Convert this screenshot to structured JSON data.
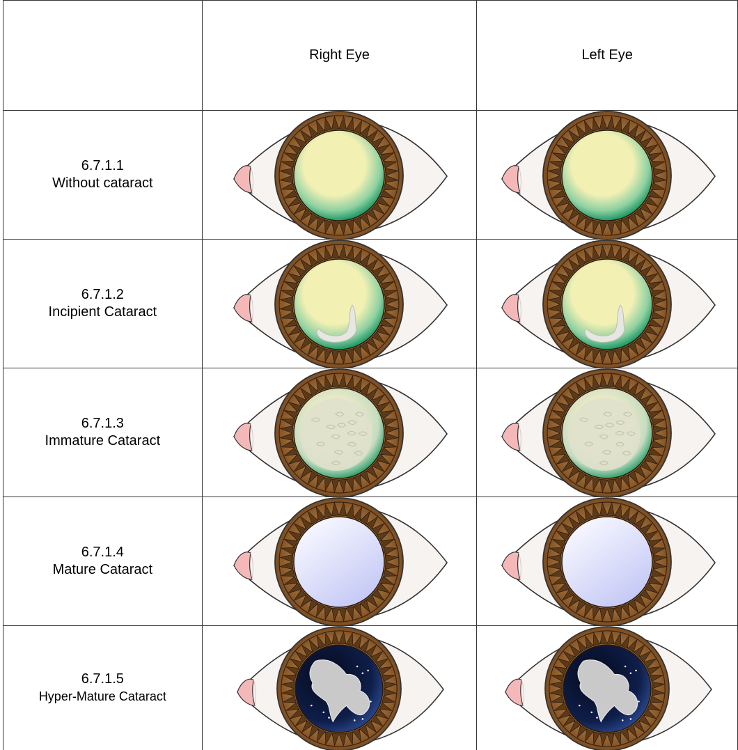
{
  "table": {
    "header": {
      "corner": "",
      "right_eye": "Right Eye",
      "left_eye": "Left Eye"
    },
    "rows": [
      {
        "code": "6.7.1.1",
        "name": "Without cataract",
        "stage": "none"
      },
      {
        "code": "6.7.1.2",
        "name": "Incipient Cataract",
        "stage": "incipient"
      },
      {
        "code": "6.7.1.3",
        "name": "Immature Cataract",
        "stage": "immature"
      },
      {
        "code": "6.7.1.4",
        "name": "Mature Cataract",
        "stage": "mature"
      },
      {
        "code": "6.7.1.5",
        "name": "Hyper-Mature Cataract",
        "stage": "hypermature"
      }
    ]
  },
  "colors": {
    "sclera": "#f7f3f0",
    "outline": "#333333",
    "caruncle": "#f5b8b8",
    "iris_dark": "#5a3a1a",
    "iris_light": "#a8743c",
    "lens_clear": "#f3f0b4",
    "lens_rim": "#1f9a66",
    "mature_lens": "#c3c8f5",
    "hyper_bg": "#0f1e4a"
  }
}
